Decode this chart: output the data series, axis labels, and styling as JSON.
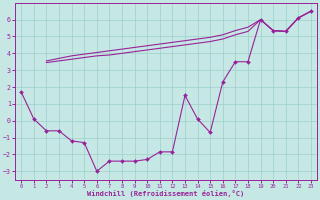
{
  "xlabel": "Windchill (Refroidissement éolien,°C)",
  "bg_color": "#c5e8e5",
  "grid_color": "#9dcfcb",
  "line_color": "#992299",
  "ylim": [
    -3.5,
    7.0
  ],
  "xlim": [
    -0.5,
    23.5
  ],
  "yticks": [
    -3,
    -2,
    -1,
    0,
    1,
    2,
    3,
    4,
    5,
    6
  ],
  "xticks": [
    0,
    1,
    2,
    3,
    4,
    5,
    6,
    7,
    8,
    9,
    10,
    11,
    12,
    13,
    14,
    15,
    16,
    17,
    18,
    19,
    20,
    21,
    22,
    23
  ],
  "x_main": [
    0,
    1,
    2,
    3,
    4,
    5,
    6,
    7,
    8,
    9,
    10,
    11,
    12,
    13,
    14,
    15,
    16,
    17,
    18,
    19,
    20,
    21,
    22,
    23
  ],
  "y_main": [
    1.7,
    0.1,
    -0.6,
    -0.6,
    -1.2,
    -1.3,
    -3.0,
    -2.4,
    -2.4,
    -2.4,
    -2.3,
    -1.85,
    -1.85,
    1.5,
    0.1,
    -0.7,
    2.3,
    3.5,
    3.5,
    6.0,
    5.35,
    5.3,
    6.1,
    6.5
  ],
  "x_line1": [
    2,
    3,
    4,
    5,
    6,
    7,
    8,
    9,
    10,
    11,
    12,
    13,
    14,
    15,
    16,
    17,
    18,
    19,
    20,
    21,
    22,
    23
  ],
  "y_line1": [
    3.55,
    3.7,
    3.85,
    3.95,
    4.05,
    4.15,
    4.25,
    4.35,
    4.45,
    4.55,
    4.65,
    4.75,
    4.85,
    4.95,
    5.1,
    5.35,
    5.55,
    6.0,
    5.35,
    5.3,
    6.1,
    6.5
  ],
  "x_line2": [
    2,
    3,
    4,
    5,
    6,
    7,
    8,
    9,
    10,
    11,
    12,
    13,
    14,
    15,
    16,
    17,
    18,
    19,
    20,
    21,
    22,
    23
  ],
  "y_line2": [
    3.45,
    3.55,
    3.65,
    3.75,
    3.85,
    3.9,
    4.0,
    4.1,
    4.2,
    4.3,
    4.4,
    4.5,
    4.6,
    4.7,
    4.85,
    5.1,
    5.3,
    6.0,
    5.35,
    5.3,
    6.1,
    6.5
  ]
}
